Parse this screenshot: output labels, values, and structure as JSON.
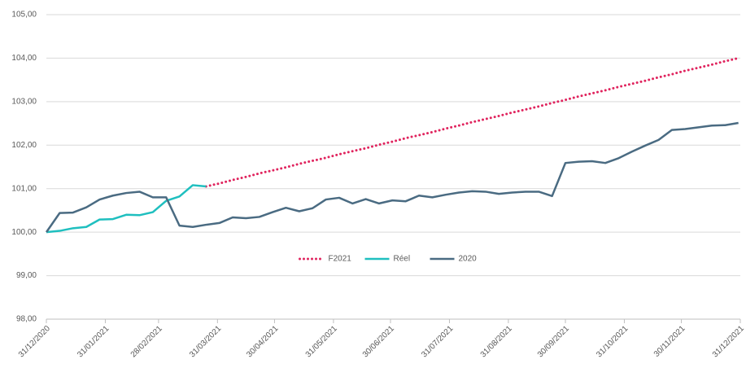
{
  "chart_data": {
    "type": "line",
    "x": [
      "2020-12-31",
      "2021-01-07",
      "2021-01-14",
      "2021-01-21",
      "2021-01-28",
      "2021-02-04",
      "2021-02-11",
      "2021-02-18",
      "2021-02-25",
      "2021-03-04",
      "2021-03-11",
      "2021-03-18",
      "2021-03-25",
      "2021-04-01",
      "2021-04-08",
      "2021-04-15",
      "2021-04-22",
      "2021-04-29",
      "2021-05-06",
      "2021-05-13",
      "2021-05-20",
      "2021-05-27",
      "2021-06-03",
      "2021-06-10",
      "2021-06-17",
      "2021-06-24",
      "2021-07-01",
      "2021-07-08",
      "2021-07-15",
      "2021-07-22",
      "2021-07-29",
      "2021-08-05",
      "2021-08-12",
      "2021-08-19",
      "2021-08-26",
      "2021-09-02",
      "2021-09-09",
      "2021-09-16",
      "2021-09-23",
      "2021-09-30",
      "2021-10-07",
      "2021-10-14",
      "2021-10-21",
      "2021-10-28",
      "2021-11-04",
      "2021-11-11",
      "2021-11-18",
      "2021-11-25",
      "2021-12-02",
      "2021-12-09",
      "2021-12-16",
      "2021-12-23",
      "2021-12-30"
    ],
    "series": [
      {
        "name": "F2021",
        "color": "#e0245e",
        "dash": "dotted",
        "values": [
          null,
          null,
          null,
          null,
          null,
          null,
          null,
          null,
          null,
          null,
          null,
          null,
          101.05,
          101.12,
          101.2,
          101.27,
          101.35,
          101.42,
          101.49,
          101.57,
          101.64,
          101.71,
          101.79,
          101.86,
          101.93,
          102.01,
          102.08,
          102.16,
          102.23,
          102.3,
          102.38,
          102.45,
          102.53,
          102.6,
          102.67,
          102.75,
          102.82,
          102.89,
          102.97,
          103.04,
          103.12,
          103.19,
          103.26,
          103.34,
          103.41,
          103.48,
          103.56,
          103.63,
          103.71,
          103.78,
          103.85,
          103.93,
          104.0
        ]
      },
      {
        "name": "Réel",
        "color": "#1fbfbf",
        "values": [
          100.0,
          100.03,
          100.09,
          100.12,
          100.29,
          100.3,
          100.4,
          100.39,
          100.46,
          100.72,
          100.82,
          101.08,
          101.05,
          null,
          null,
          null,
          null,
          null,
          null,
          null,
          null,
          null,
          null,
          null,
          null,
          null,
          null,
          null,
          null,
          null,
          null,
          null,
          null,
          null,
          null,
          null,
          null,
          null,
          null,
          null,
          null,
          null,
          null,
          null,
          null,
          null,
          null,
          null,
          null,
          null,
          null,
          null,
          null
        ]
      },
      {
        "name": "2020",
        "color": "#4a6b82",
        "values": [
          100.0,
          100.44,
          100.45,
          100.57,
          100.75,
          100.84,
          100.9,
          100.93,
          100.8,
          100.8,
          100.15,
          100.12,
          100.17,
          100.21,
          100.34,
          100.32,
          100.35,
          100.46,
          100.56,
          100.48,
          100.55,
          100.75,
          100.79,
          100.66,
          100.76,
          100.66,
          100.73,
          100.71,
          100.84,
          100.8,
          100.86,
          100.91,
          100.94,
          100.93,
          100.88,
          100.91,
          100.93,
          100.93,
          100.83,
          101.59,
          101.62,
          101.63,
          101.59,
          101.7,
          101.85,
          101.99,
          102.12,
          102.35,
          102.37,
          102.41,
          102.45,
          102.46,
          102.51
        ]
      }
    ],
    "xlim": [
      "2020-12-31",
      "2021-12-31"
    ],
    "xticks": [
      {
        "value": "2020-12-31",
        "label": "31/12/2020"
      },
      {
        "value": "2021-01-31",
        "label": "31/01/2021"
      },
      {
        "value": "2021-02-28",
        "label": "28/02/2021"
      },
      {
        "value": "2021-03-31",
        "label": "31/03/2021"
      },
      {
        "value": "2021-04-30",
        "label": "30/04/2021"
      },
      {
        "value": "2021-05-31",
        "label": "31/05/2021"
      },
      {
        "value": "2021-06-30",
        "label": "30/06/2021"
      },
      {
        "value": "2021-07-31",
        "label": "31/07/2021"
      },
      {
        "value": "2021-08-31",
        "label": "31/08/2021"
      },
      {
        "value": "2021-09-30",
        "label": "30/09/2021"
      },
      {
        "value": "2021-10-31",
        "label": "31/10/2021"
      },
      {
        "value": "2021-11-30",
        "label": "30/11/2021"
      },
      {
        "value": "2021-12-31",
        "label": "31/12/2021"
      }
    ],
    "ylim": [
      98,
      105
    ],
    "yticks": [
      {
        "value": 98,
        "label": "98,00"
      },
      {
        "value": 99,
        "label": "99,00"
      },
      {
        "value": 100,
        "label": "100,00"
      },
      {
        "value": 101,
        "label": "101,00"
      },
      {
        "value": 102,
        "label": "102,00"
      },
      {
        "value": 103,
        "label": "103,00"
      },
      {
        "value": 104,
        "label": "104,00"
      },
      {
        "value": 105,
        "label": "105,00"
      }
    ],
    "grid": true,
    "legend": "center"
  }
}
